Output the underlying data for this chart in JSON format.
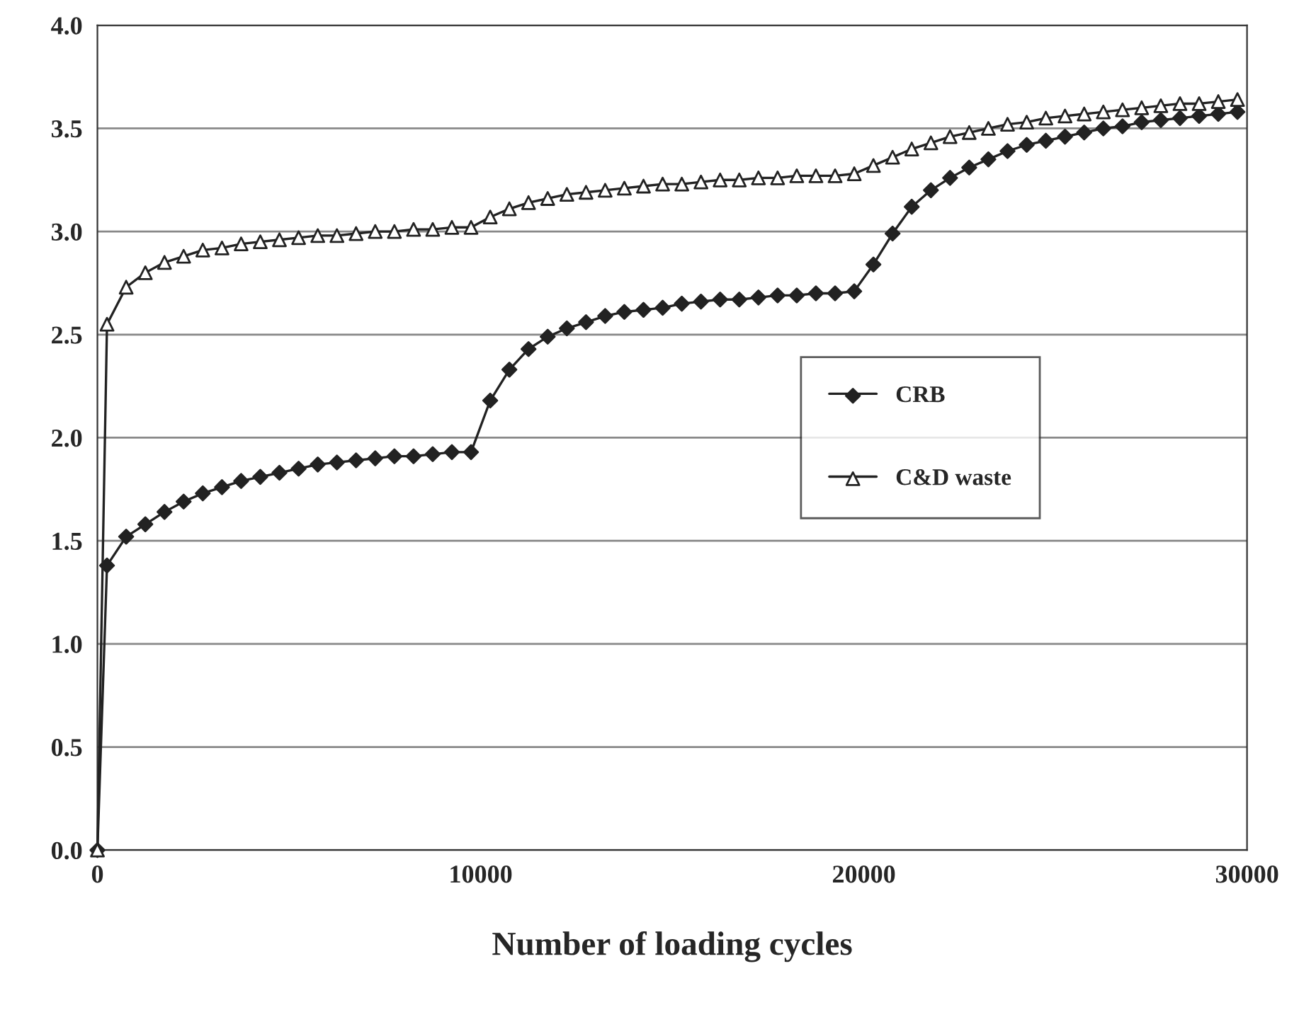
{
  "chart_data": {
    "type": "line",
    "xlabel": "Number of loading cycles",
    "xlim": [
      0,
      30000
    ],
    "xticks": [
      0,
      10000,
      20000,
      30000
    ],
    "ylim": [
      0,
      4.0
    ],
    "yticks": [
      {
        "value": 0,
        "label": "0.0"
      },
      0.5,
      {
        "value": 1,
        "label": "1.0"
      },
      1.5,
      {
        "value": 2,
        "label": "2.0"
      },
      2.5,
      {
        "value": 3,
        "label": "3.0"
      },
      3.5,
      {
        "value": 4,
        "label": "4.0"
      }
    ],
    "grid": "y",
    "legend": "right",
    "x": [
      0,
      250,
      750,
      1250,
      1750,
      2250,
      2750,
      3250,
      3750,
      4250,
      4750,
      5250,
      5750,
      6250,
      6750,
      7250,
      7750,
      8250,
      8750,
      9250,
      9750,
      10250,
      10750,
      11250,
      11750,
      12250,
      12750,
      13250,
      13750,
      14250,
      14750,
      15250,
      15750,
      16250,
      16750,
      17250,
      17750,
      18250,
      18750,
      19250,
      19750,
      20250,
      20750,
      21250,
      21750,
      22250,
      22750,
      23250,
      23750,
      24250,
      24750,
      25250,
      25750,
      26250,
      26750,
      27250,
      27750,
      28250,
      28750,
      29250,
      29750
    ],
    "series": [
      {
        "name": "CRB",
        "color": "#222222",
        "marker": "diamond",
        "values": [
          0,
          1.38,
          1.52,
          1.58,
          1.64,
          1.69,
          1.73,
          1.76,
          1.79,
          1.81,
          1.83,
          1.85,
          1.87,
          1.88,
          1.89,
          1.9,
          1.91,
          1.91,
          1.92,
          1.93,
          1.93,
          2.18,
          2.33,
          2.43,
          2.49,
          2.53,
          2.56,
          2.59,
          2.61,
          2.62,
          2.63,
          2.65,
          2.66,
          2.67,
          2.67,
          2.68,
          2.69,
          2.69,
          2.7,
          2.7,
          2.71,
          2.84,
          2.99,
          3.12,
          3.2,
          3.26,
          3.31,
          3.35,
          3.39,
          3.42,
          3.44,
          3.46,
          3.48,
          3.5,
          3.51,
          3.53,
          3.54,
          3.55,
          3.56,
          3.57,
          3.58
        ]
      },
      {
        "name": "C&D waste",
        "color": "#222222",
        "marker": "triangle",
        "values": [
          0,
          2.55,
          2.73,
          2.8,
          2.85,
          2.88,
          2.91,
          2.92,
          2.94,
          2.95,
          2.96,
          2.97,
          2.98,
          2.98,
          2.99,
          3.0,
          3.0,
          3.01,
          3.01,
          3.02,
          3.02,
          3.07,
          3.11,
          3.14,
          3.16,
          3.18,
          3.19,
          3.2,
          3.21,
          3.22,
          3.23,
          3.23,
          3.24,
          3.25,
          3.25,
          3.26,
          3.26,
          3.27,
          3.27,
          3.27,
          3.28,
          3.32,
          3.36,
          3.4,
          3.43,
          3.46,
          3.48,
          3.5,
          3.52,
          3.53,
          3.55,
          3.56,
          3.57,
          3.58,
          3.59,
          3.6,
          3.61,
          3.62,
          3.62,
          3.63,
          3.64
        ]
      }
    ]
  }
}
